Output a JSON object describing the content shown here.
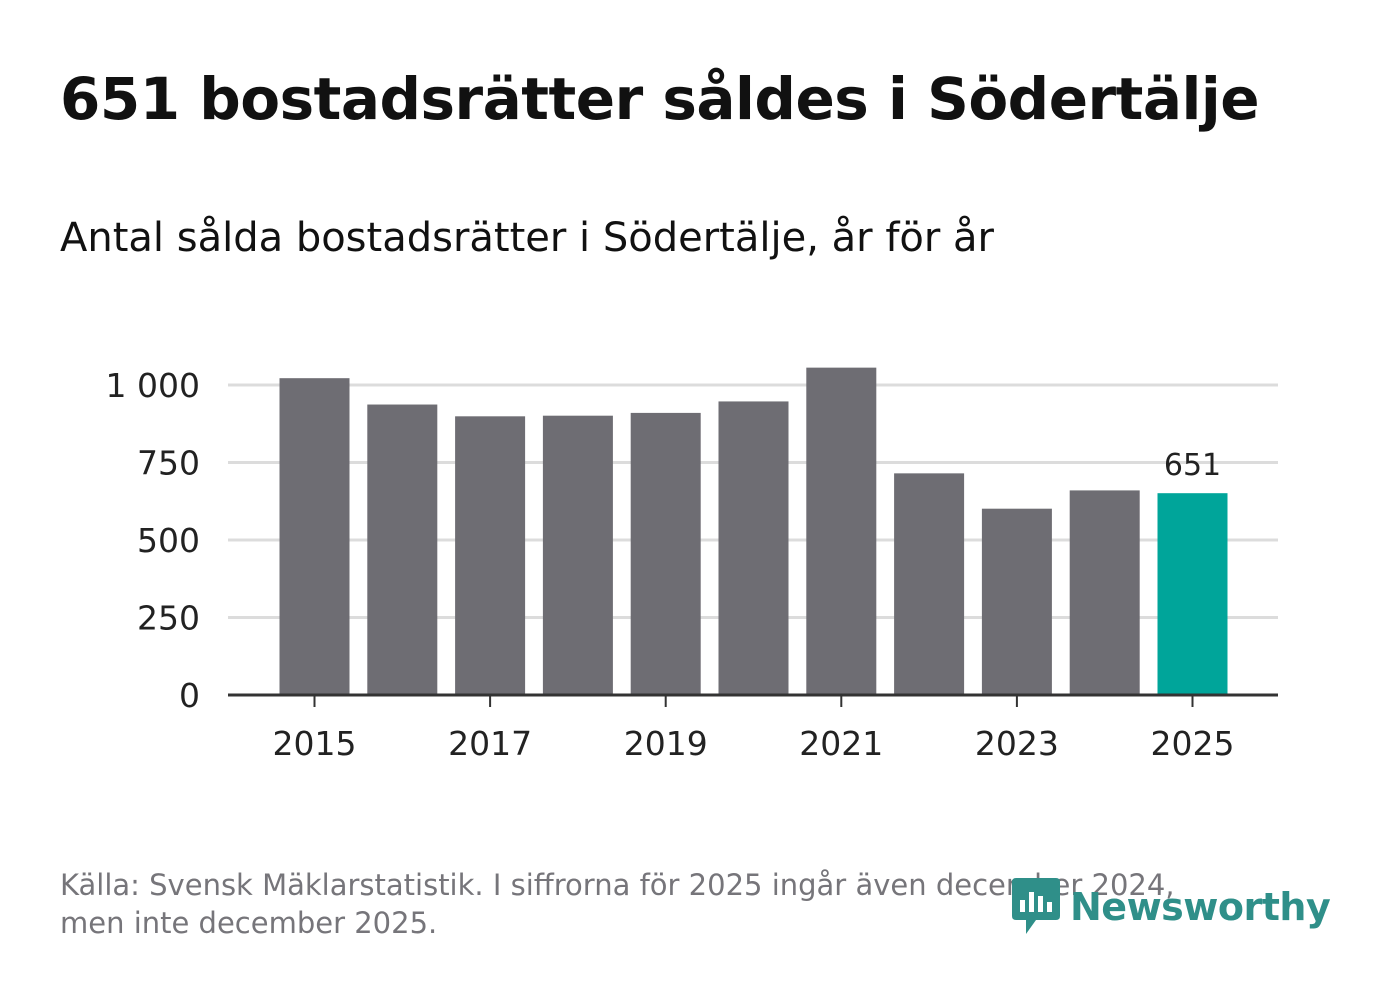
{
  "title": "651 bostadsrätter såldes i Södertälje",
  "subtitle": "Antal sålda bostadsrätter i Södertälje, år för år",
  "chart_data": {
    "type": "bar",
    "title": "651 bostadsrätter såldes i Södertälje",
    "subtitle": "Antal sålda bostadsrätter i Södertälje, år för år",
    "xlabel": "",
    "ylabel": "",
    "categories": [
      "2015",
      "2016",
      "2017",
      "2018",
      "2019",
      "2020",
      "2021",
      "2022",
      "2023",
      "2024",
      "2025"
    ],
    "values": [
      1022,
      937,
      899,
      901,
      910,
      947,
      1056,
      715,
      601,
      660,
      651
    ],
    "highlight_index": 10,
    "highlight_label": "651",
    "ylim": [
      0,
      1070
    ],
    "yticks": [
      0,
      250,
      500,
      750,
      1000
    ],
    "ytick_labels": [
      "0",
      "250",
      "500",
      "750",
      "1 000"
    ],
    "xtick_labels": [
      "2015",
      "2017",
      "2019",
      "2021",
      "2023",
      "2025"
    ],
    "xtick_indices": [
      0,
      2,
      4,
      6,
      8,
      10
    ],
    "grid": true,
    "colors": {
      "bar": "#6e6d73",
      "highlight": "#00a59a",
      "grid": "#dcdcdc",
      "axis": "#333333",
      "text": "#222222"
    }
  },
  "footer": {
    "line1": "Källa: Svensk Mäklarstatistik. I siffrorna för 2025 ingår även december 2024,",
    "line2": "men inte december 2025."
  },
  "logo": {
    "name": "Newsworthy",
    "icon": "newsworthy-logo-icon",
    "color": "#2f8f89"
  }
}
